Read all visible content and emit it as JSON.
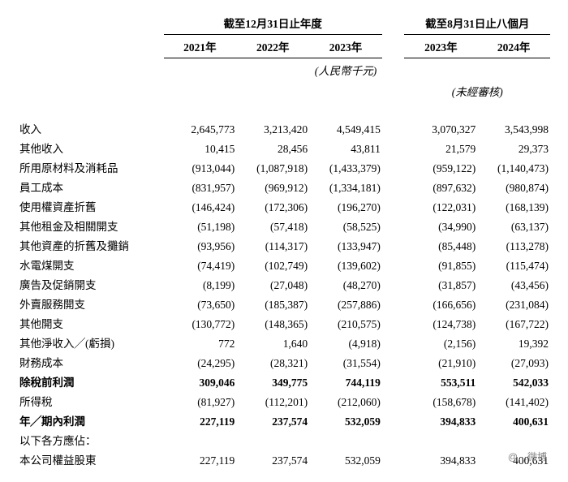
{
  "headers": {
    "group_a": "截至12月31日止年度",
    "group_b": "截至8月31日止八個月",
    "years": {
      "y2021": "2021年",
      "y2022": "2022年",
      "y2023a": "2023年",
      "y2023b": "2023年",
      "y2024": "2024年"
    },
    "unit": "(人民幣千元)",
    "unaudited": "(未經審核)"
  },
  "rows": [
    {
      "label": "收入",
      "v": [
        "2,645,773",
        "3,213,420",
        "4,549,415",
        "3,070,327",
        "3,543,998"
      ]
    },
    {
      "label": "其他收入",
      "v": [
        "10,415",
        "28,456",
        "43,811",
        "21,579",
        "29,373"
      ]
    },
    {
      "label": "所用原材料及消耗品",
      "v": [
        "(913,044)",
        "(1,087,918)",
        "(1,433,379)",
        "(959,122)",
        "(1,140,473)"
      ]
    },
    {
      "label": "員工成本",
      "v": [
        "(831,957)",
        "(969,912)",
        "(1,334,181)",
        "(897,632)",
        "(980,874)"
      ]
    },
    {
      "label": "使用權資產折舊",
      "v": [
        "(146,424)",
        "(172,306)",
        "(196,270)",
        "(122,031)",
        "(168,139)"
      ]
    },
    {
      "label": "其他租金及相關開支",
      "v": [
        "(51,198)",
        "(57,418)",
        "(58,525)",
        "(34,990)",
        "(63,137)"
      ]
    },
    {
      "label": "其他資產的折舊及攤銷",
      "v": [
        "(93,956)",
        "(114,317)",
        "(133,947)",
        "(85,448)",
        "(113,278)"
      ]
    },
    {
      "label": "水電煤開支",
      "v": [
        "(74,419)",
        "(102,749)",
        "(139,602)",
        "(91,855)",
        "(115,474)"
      ]
    },
    {
      "label": "廣告及促銷開支",
      "v": [
        "(8,199)",
        "(27,048)",
        "(48,270)",
        "(31,857)",
        "(43,456)"
      ]
    },
    {
      "label": "外賣服務開支",
      "v": [
        "(73,650)",
        "(185,387)",
        "(257,886)",
        "(166,656)",
        "(231,084)"
      ]
    },
    {
      "label": "其他開支",
      "v": [
        "(130,772)",
        "(148,365)",
        "(210,575)",
        "(124,738)",
        "(167,722)"
      ]
    },
    {
      "label": "其他淨收入╱(虧損)",
      "v": [
        "772",
        "1,640",
        "(4,918)",
        "(2,156)",
        "19,392"
      ]
    },
    {
      "label": "財務成本",
      "v": [
        "(24,295)",
        "(28,321)",
        "(31,554)",
        "(21,910)",
        "(27,093)"
      ]
    },
    {
      "label": "除稅前利潤",
      "v": [
        "309,046",
        "349,775",
        "744,119",
        "553,511",
        "542,033"
      ],
      "bold": true
    },
    {
      "label": "所得稅",
      "v": [
        "(81,927)",
        "(112,201)",
        "(212,060)",
        "(158,678)",
        "(141,402)"
      ]
    },
    {
      "label": "年╱期內利潤",
      "v": [
        "227,119",
        "237,574",
        "532,059",
        "394,833",
        "400,631"
      ],
      "bold": true
    },
    {
      "label": "以下各方應佔：",
      "v": [
        "",
        "",
        "",
        "",
        ""
      ]
    },
    {
      "label": "本公司權益股東",
      "v": [
        "227,119",
        "237,574",
        "532,059",
        "394,833",
        "400,631"
      ]
    }
  ],
  "watermark": "@…微博"
}
